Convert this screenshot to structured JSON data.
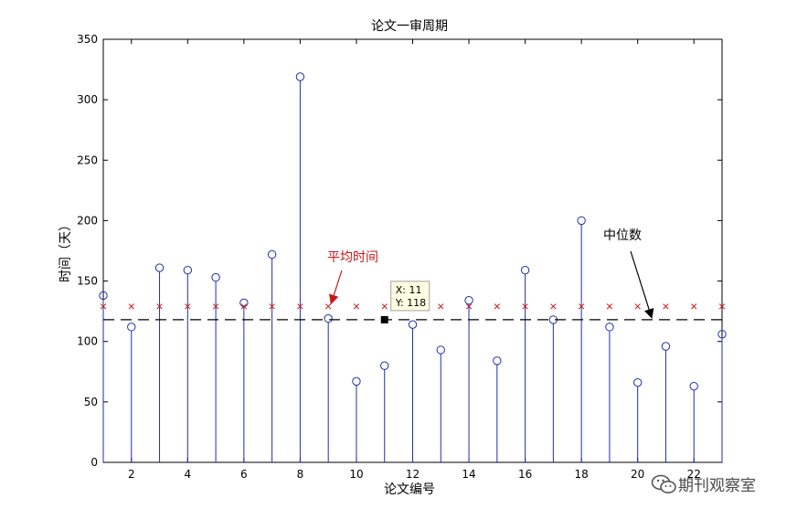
{
  "chart_data": {
    "type": "stem",
    "title": "论文一审周期",
    "xlabel": "论文编号",
    "ylabel": "时间（天）",
    "xlim": [
      1,
      23
    ],
    "ylim": [
      0,
      350
    ],
    "xticks": [
      2,
      4,
      6,
      8,
      10,
      12,
      14,
      16,
      18,
      20,
      22
    ],
    "yticks": [
      0,
      50,
      100,
      150,
      200,
      250,
      300,
      350
    ],
    "grid": false,
    "x": [
      1,
      2,
      3,
      4,
      5,
      6,
      7,
      8,
      9,
      10,
      11,
      12,
      13,
      14,
      15,
      16,
      17,
      18,
      19,
      20,
      21,
      22,
      23
    ],
    "series": [
      {
        "type": "stem",
        "marker": "o",
        "color": "#1f2fb0",
        "values": [
          138,
          112,
          161,
          159,
          153,
          132,
          172,
          319,
          119,
          67,
          80,
          114,
          93,
          134,
          84,
          159,
          118,
          200,
          112,
          66,
          96,
          63,
          106
        ]
      },
      {
        "type": "markers",
        "marker": "x",
        "color": "#d01818",
        "value": 129
      },
      {
        "type": "dashed-line",
        "color": "#000000",
        "value": 118
      }
    ],
    "annotations": [
      {
        "text": "平均时间",
        "color": "#c81818",
        "points_to": [
          9,
          129
        ]
      },
      {
        "text": "中位数",
        "color": "#000000",
        "points_to": [
          20.5,
          118
        ]
      }
    ],
    "datatip": {
      "x": 11,
      "y": 118,
      "line1": "X: 11",
      "line2": "Y: 118"
    }
  },
  "watermark": {
    "text": "期刊观察室",
    "icon": "wechat-icon"
  }
}
